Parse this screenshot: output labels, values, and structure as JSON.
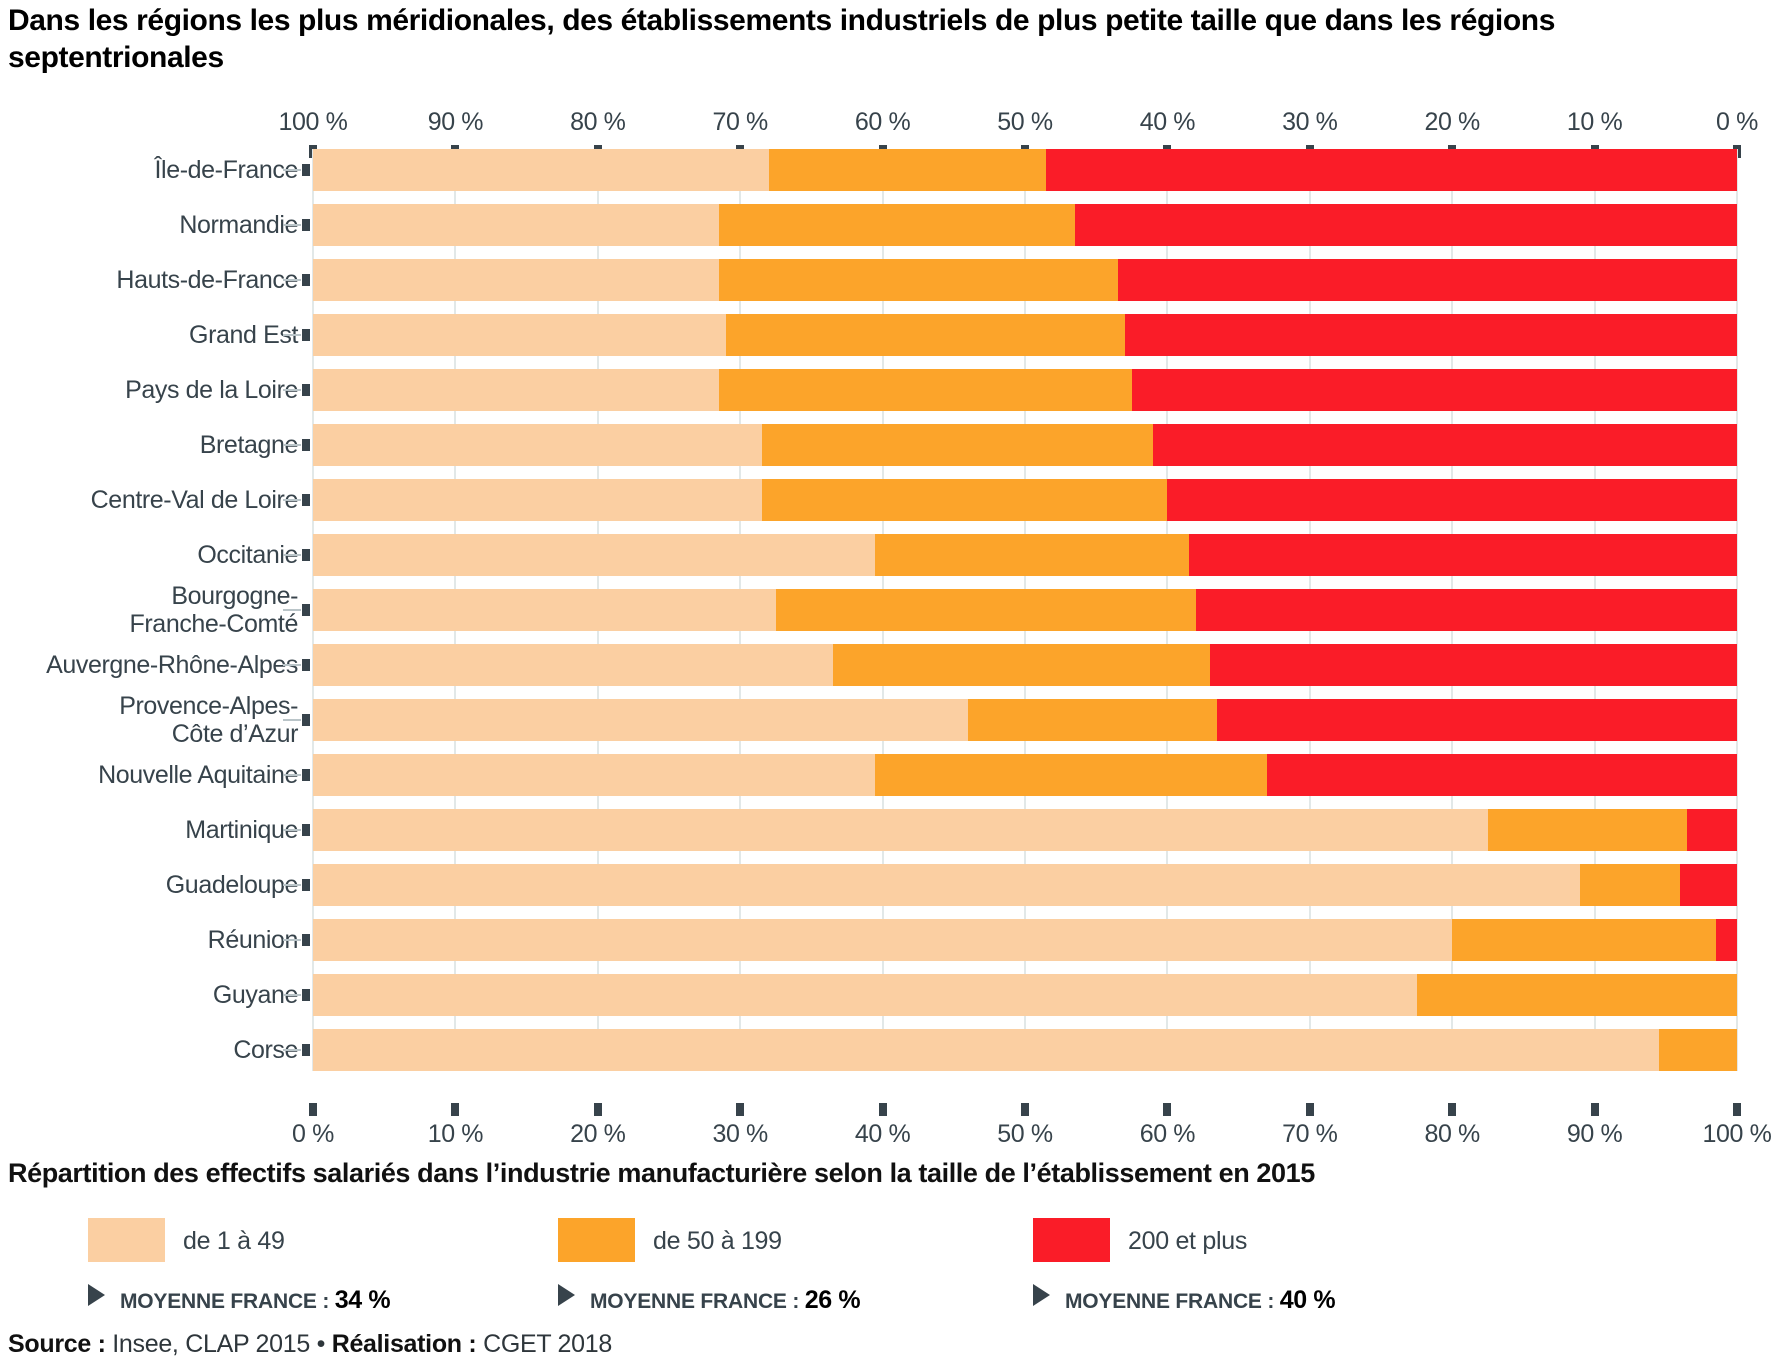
{
  "title": "Dans les régions les plus méridionales, des établissements industriels de plus petite taille que dans les régions septentrionales",
  "subtitle": "Répartition des effectifs salariés dans l’industrie manufacturière selon la taille de l’établissement en 2015",
  "source": {
    "label1": "Source :",
    "text1": " Insee, CLAP 2015 • ",
    "label2": "Réalisation :",
    "text2": " CGET 2018"
  },
  "colors": {
    "size_1_49": "#fbcfa2",
    "size_50_199": "#fca42a",
    "size_200_plus": "#fa1c28",
    "axis_text": "#37434b",
    "gridline": "#e2e8e8"
  },
  "axes": {
    "top_labels": [
      "100 %",
      "90 %",
      "80 %",
      "70 %",
      "60 %",
      "50 %",
      "40 %",
      "30 %",
      "20 %",
      "10 %",
      "0 %"
    ],
    "bottom_labels": [
      "0 %",
      "10 %",
      "20 %",
      "30 %",
      "40 %",
      "50 %",
      "60 %",
      "70 %",
      "80 %",
      "90 %",
      "100 %"
    ]
  },
  "legend": {
    "average_prefix": "MOYENNE FRANCE",
    "items": [
      {
        "label": "de 1 à 49",
        "average": "34 %"
      },
      {
        "label": "de 50 à 199",
        "average": "26 %"
      },
      {
        "label": "200 et plus",
        "average": "40 %"
      }
    ]
  },
  "chart_data": {
    "type": "bar",
    "orientation": "horizontal",
    "stacked": true,
    "unit": "%",
    "xlim": [
      0,
      100
    ],
    "grid": true,
    "categories": [
      "Île-de-France",
      "Normandie",
      "Hauts-de-France",
      "Grand Est",
      "Pays de la Loire",
      "Bretagne",
      "Centre-Val de Loire",
      "Occitanie",
      "Bourgogne-\nFranche-Comté",
      "Auvergne-Rhône-Alpes",
      "Provence-Alpes-\nCôte d’Azur",
      "Nouvelle Aquitaine",
      "Martinique",
      "Guadeloupe",
      "Réunion",
      "Guyane",
      "Corse"
    ],
    "series": [
      {
        "name": "de 1 à 49",
        "france_average": 34,
        "values": [
          32,
          28.5,
          28.5,
          29,
          28.5,
          31.5,
          31.5,
          39.5,
          32.5,
          36.5,
          46,
          39.5,
          82.5,
          89,
          80,
          77.5,
          94.5
        ]
      },
      {
        "name": "de 50 à 199",
        "france_average": 26,
        "values": [
          19.5,
          25,
          28,
          28,
          29,
          27.5,
          28.5,
          22,
          29.5,
          26.5,
          17.5,
          27.5,
          14,
          7,
          18.5,
          22.5,
          5.5
        ]
      },
      {
        "name": "200 et plus",
        "france_average": 40,
        "values": [
          48.5,
          46.5,
          43.5,
          43,
          42.5,
          41,
          40,
          38.5,
          38,
          37,
          36.5,
          33,
          3.5,
          4,
          1.5,
          0,
          0
        ]
      }
    ]
  }
}
